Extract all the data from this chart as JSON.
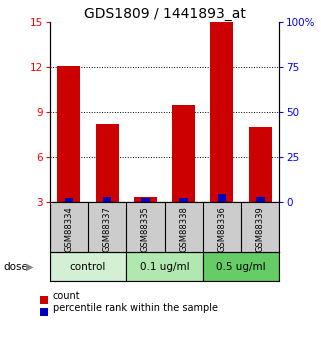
{
  "title": "GDS1809 / 1441893_at",
  "samples": [
    "GSM88334",
    "GSM88337",
    "GSM88335",
    "GSM88338",
    "GSM88336",
    "GSM88339"
  ],
  "groups": [
    {
      "label": "control",
      "indices": [
        0,
        1
      ],
      "color": "#d4f0d4"
    },
    {
      "label": "0.1 ug/ml",
      "indices": [
        2,
        3
      ],
      "color": "#b0e8b0"
    },
    {
      "label": "0.5 ug/ml",
      "indices": [
        4,
        5
      ],
      "color": "#66cc66"
    }
  ],
  "count_values": [
    12.1,
    8.2,
    3.3,
    9.5,
    15.0,
    8.0
  ],
  "percentile_values": [
    2.0,
    2.5,
    2.2,
    2.2,
    4.5,
    2.5
  ],
  "ylim_left": [
    3,
    15
  ],
  "ylim_right": [
    0,
    100
  ],
  "yticks_left": [
    3,
    6,
    9,
    12,
    15
  ],
  "yticks_right": [
    0,
    25,
    50,
    75,
    100
  ],
  "ytick_labels_right": [
    "0",
    "25",
    "50",
    "75",
    "100%"
  ],
  "bar_width": 0.6,
  "red_color": "#cc0000",
  "blue_color": "#0000bb",
  "grid_color": "#888888",
  "ax_bg_color": "#ffffff",
  "sample_bg_color": "#cccccc",
  "dose_label": "dose",
  "legend_count": "count",
  "legend_percentile": "percentile rank within the sample",
  "title_fontsize": 10,
  "tick_fontsize": 7.5,
  "sample_fontsize": 6.0,
  "group_fontsize": 7.5
}
